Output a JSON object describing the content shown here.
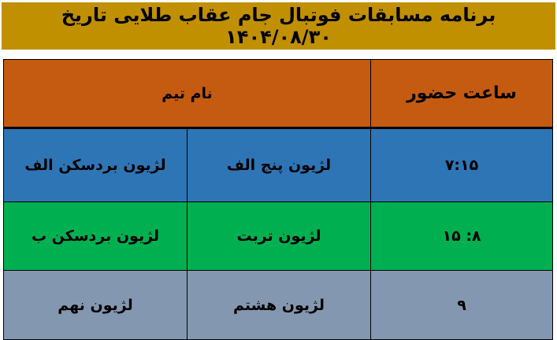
{
  "title": "برنامه مسابقات فوتبال جام عقاب طلایی تاریخ ۱۴۰۴/۰۸/۳۰",
  "header": {
    "time": "ساعت حضور",
    "team": "نام تیم"
  },
  "rows": [
    {
      "time": "۷:۱۵",
      "team1": "لژیون پنج الف",
      "team2": "لژیون بردسکن الف"
    },
    {
      "time": "۸: ۱۵",
      "team1": "لژیون  تربت",
      "team2": "لژیون بردسکن ب"
    },
    {
      "time": "۹",
      "team1": "لژیون هشتم",
      "team2": "لژیون نهم"
    }
  ],
  "colors": {
    "banner": "#C09000",
    "header": "#C55A11",
    "row1": "#2E75B6",
    "row2": "#00B050",
    "row3": "#8497B0"
  }
}
